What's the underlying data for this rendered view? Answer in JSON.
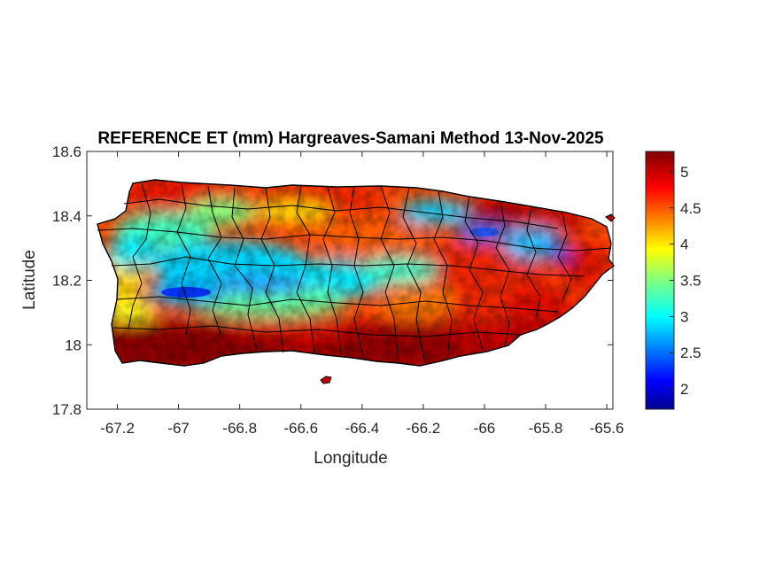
{
  "title": "REFERENCE ET (mm) Hargreaves-Samani Method  13-Nov-2025",
  "map": {
    "xlabel": "Longitude",
    "ylabel": "Latitude",
    "xlim": [
      -67.3,
      -65.58
    ],
    "ylim": [
      17.8,
      18.6
    ],
    "xticks": [
      {
        "value": -67.2,
        "label": "-67.2"
      },
      {
        "value": -67.0,
        "label": "-67"
      },
      {
        "value": -66.8,
        "label": "-66.8"
      },
      {
        "value": -66.6,
        "label": "-66.6"
      },
      {
        "value": -66.4,
        "label": "-66.4"
      },
      {
        "value": -66.2,
        "label": "-66.2"
      },
      {
        "value": -66.0,
        "label": "-66"
      },
      {
        "value": -65.8,
        "label": "-65.8"
      },
      {
        "value": -65.6,
        "label": "-65.6"
      }
    ],
    "yticks": [
      {
        "value": 18.6,
        "label": "18.6"
      },
      {
        "value": 18.4,
        "label": "18.4"
      },
      {
        "value": 18.2,
        "label": "18.2"
      },
      {
        "value": 18.0,
        "label": "18"
      },
      {
        "value": 17.8,
        "label": "17.8"
      }
    ]
  },
  "colorbar": {
    "colormap": "jet",
    "clim": [
      1.72,
      5.28
    ],
    "ticks": [
      {
        "value": 2.0,
        "label": "2"
      },
      {
        "value": 2.5,
        "label": "2.5"
      },
      {
        "value": 3.0,
        "label": "3"
      },
      {
        "value": 3.5,
        "label": "3.5"
      },
      {
        "value": 4.0,
        "label": "4"
      },
      {
        "value": 4.5,
        "label": "4.5"
      },
      {
        "value": 5.0,
        "label": "5"
      }
    ]
  },
  "colors": {
    "jet": [
      "#00008f",
      "#0000ff",
      "#0080ff",
      "#00ffff",
      "#80ff80",
      "#ffff00",
      "#ff8000",
      "#ff0000",
      "#800000"
    ],
    "outline": "#000000",
    "axes": "#262626"
  }
}
